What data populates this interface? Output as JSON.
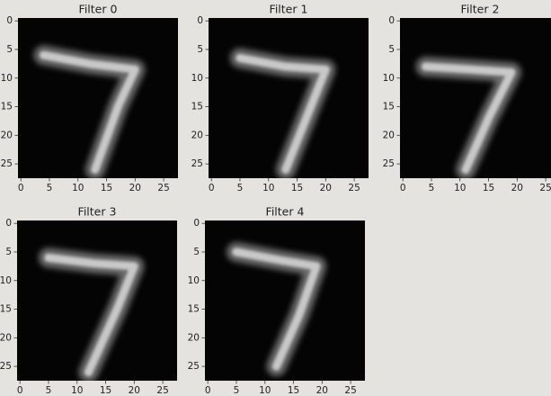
{
  "chart_data": [
    {
      "type": "image",
      "title": "Filter 0",
      "xlim": [
        -0.5,
        27.5
      ],
      "ylim": [
        27.5,
        -0.5
      ],
      "xticks": [
        0,
        5,
        10,
        15,
        20,
        25
      ],
      "yticks": [
        0,
        5,
        10,
        15,
        20,
        25
      ]
    },
    {
      "type": "image",
      "title": "Filter 1",
      "xlim": [
        -0.5,
        27.5
      ],
      "ylim": [
        27.5,
        -0.5
      ],
      "xticks": [
        0,
        5,
        10,
        15,
        20,
        25
      ],
      "yticks": [
        0,
        5,
        10,
        15,
        20,
        25
      ]
    },
    {
      "type": "image",
      "title": "Filter 2",
      "xlim": [
        -0.5,
        27.5
      ],
      "ylim": [
        27.5,
        -0.5
      ],
      "xticks": [
        0,
        5,
        10,
        15,
        20,
        25
      ],
      "yticks": [
        0,
        5,
        10,
        15,
        20,
        25
      ]
    },
    {
      "type": "image",
      "title": "Filter 3",
      "xlim": [
        -0.5,
        27.5
      ],
      "ylim": [
        27.5,
        -0.5
      ],
      "xticks": [
        0,
        5,
        10,
        15,
        20,
        25
      ],
      "yticks": [
        0,
        5,
        10,
        15,
        20,
        25
      ]
    },
    {
      "type": "image",
      "title": "Filter 4",
      "xlim": [
        -0.5,
        27.5
      ],
      "ylim": [
        27.5,
        -0.5
      ],
      "xticks": [
        0,
        5,
        10,
        15,
        20,
        25
      ],
      "yticks": [
        0,
        5,
        10,
        15,
        20,
        25
      ]
    }
  ]
}
